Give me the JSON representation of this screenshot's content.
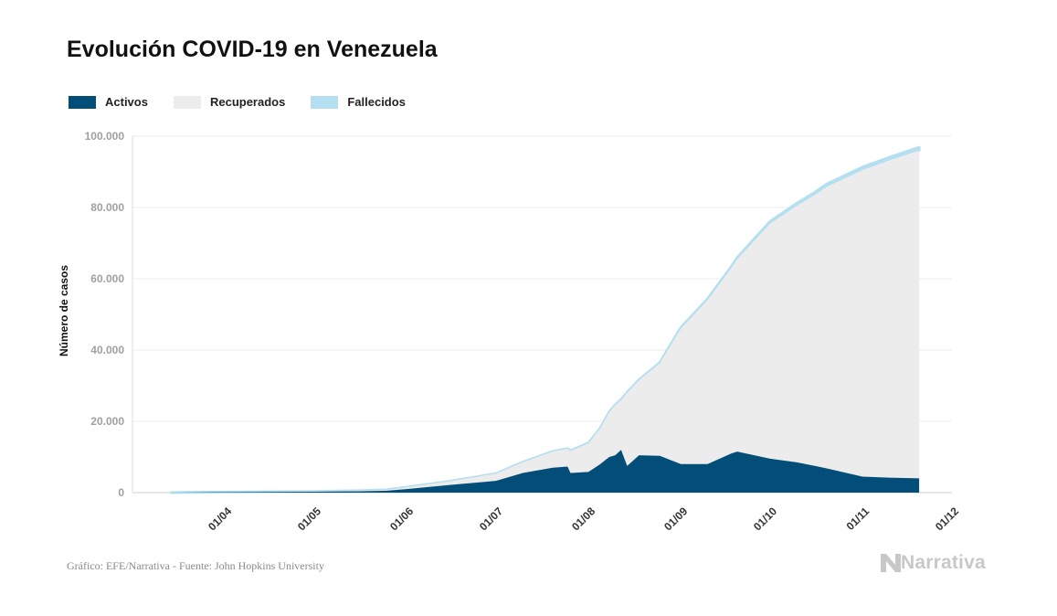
{
  "title": "Evolución COVID-19 en Venezuela",
  "source": "Gráfico: EFE/Narrativa - Fuente: John Hopkins University",
  "logo_text": "Narrativa",
  "colors": {
    "activos": "#034e78",
    "recuperados": "#ececec",
    "fallecidos": "#b3dff0"
  },
  "chart_data": {
    "type": "area",
    "stacked": true,
    "title": "Evolución COVID-19 en Venezuela",
    "xlabel": "",
    "ylabel": "Número de casos",
    "ylim": [
      0,
      100000
    ],
    "yticks": [
      0,
      20000,
      40000,
      60000,
      80000,
      100000
    ],
    "ytick_labels": [
      "0",
      "20.000",
      "40.000",
      "60.000",
      "80.000",
      "100.000"
    ],
    "xlim": [
      "2020-03-01",
      "2020-12-01"
    ],
    "xticks": [
      "2020-04-01",
      "2020-05-01",
      "2020-06-01",
      "2020-07-01",
      "2020-08-01",
      "2020-09-01",
      "2020-10-01",
      "2020-11-01",
      "2020-12-01"
    ],
    "xtick_labels": [
      "01/04",
      "01/05",
      "01/06",
      "01/07",
      "01/08",
      "01/09",
      "01/10",
      "01/11",
      "01/12"
    ],
    "grid": true,
    "legend_position": "top-left",
    "x": [
      "2020-03-14",
      "2020-04-01",
      "2020-04-15",
      "2020-05-01",
      "2020-05-15",
      "2020-05-25",
      "2020-06-01",
      "2020-06-15",
      "2020-07-01",
      "2020-07-10",
      "2020-07-20",
      "2020-07-25",
      "2020-07-26",
      "2020-08-01",
      "2020-08-05",
      "2020-08-08",
      "2020-08-10",
      "2020-08-12",
      "2020-08-14",
      "2020-08-18",
      "2020-08-25",
      "2020-09-01",
      "2020-09-10",
      "2020-09-18",
      "2020-09-20",
      "2020-10-01",
      "2020-10-10",
      "2020-10-16",
      "2020-10-20",
      "2020-11-01",
      "2020-11-10",
      "2020-11-20"
    ],
    "series": [
      {
        "name": "Activos",
        "values": [
          10,
          130,
          190,
          250,
          350,
          500,
          1000,
          2100,
          3300,
          5500,
          7000,
          7300,
          5500,
          5800,
          8000,
          10000,
          10500,
          12000,
          7500,
          10500,
          10300,
          8000,
          8000,
          11000,
          11500,
          9500,
          8500,
          7500,
          6800,
          4500,
          4200,
          4000
        ]
      },
      {
        "name": "Recuperados",
        "values": [
          0,
          20,
          70,
          100,
          150,
          250,
          500,
          1000,
          2000,
          3000,
          4500,
          5000,
          6200,
          8000,
          10000,
          12500,
          14000,
          14000,
          20500,
          21000,
          26000,
          38000,
          46000,
          52000,
          54000,
          66000,
          72000,
          76000,
          79000,
          86000,
          89000,
          92000
        ]
      },
      {
        "name": "Fallecidos",
        "values": [
          0,
          0,
          2,
          5,
          10,
          14,
          15,
          20,
          33,
          40,
          50,
          55,
          65,
          92,
          100,
          110,
          115,
          120,
          130,
          150,
          200,
          280,
          350,
          420,
          470,
          600,
          700,
          750,
          780,
          830,
          850,
          880
        ]
      }
    ]
  }
}
